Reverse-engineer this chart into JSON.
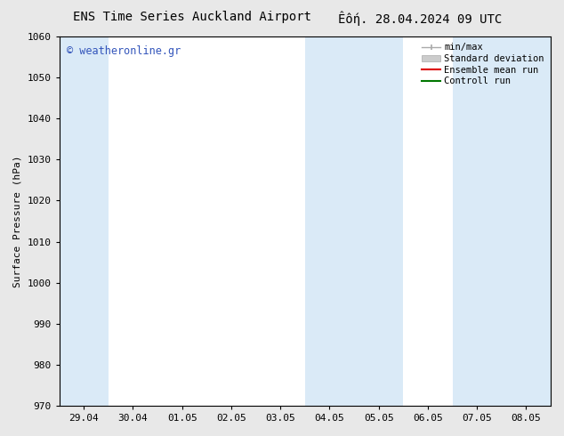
{
  "title_left": "ENS Time Series Auckland Airport",
  "title_right": "Êôή. 28.04.2024 09 UTC",
  "ylabel": "Surface Pressure (hPa)",
  "ylim": [
    970,
    1060
  ],
  "yticks": [
    970,
    980,
    990,
    1000,
    1010,
    1020,
    1030,
    1040,
    1050,
    1060
  ],
  "xtick_labels": [
    "29.04",
    "30.04",
    "01.05",
    "02.05",
    "03.05",
    "04.05",
    "05.05",
    "06.05",
    "07.05",
    "08.05"
  ],
  "n_cols": 10,
  "shaded_cols": [
    0,
    5,
    6,
    8,
    9
  ],
  "shaded_color": "#daeaf7",
  "bg_color": "#ffffff",
  "watermark": "© weatheronline.gr",
  "watermark_color": "#3355bb",
  "legend_items": [
    {
      "label": "min/max"
    },
    {
      "label": "Standard deviation"
    },
    {
      "label": "Ensemble mean run",
      "color": "#dd0000"
    },
    {
      "label": "Controll run",
      "color": "#007700"
    }
  ],
  "font_size_title": 10,
  "font_size_tick": 8,
  "font_size_ylabel": 8,
  "fig_bg_color": "#e8e8e8"
}
